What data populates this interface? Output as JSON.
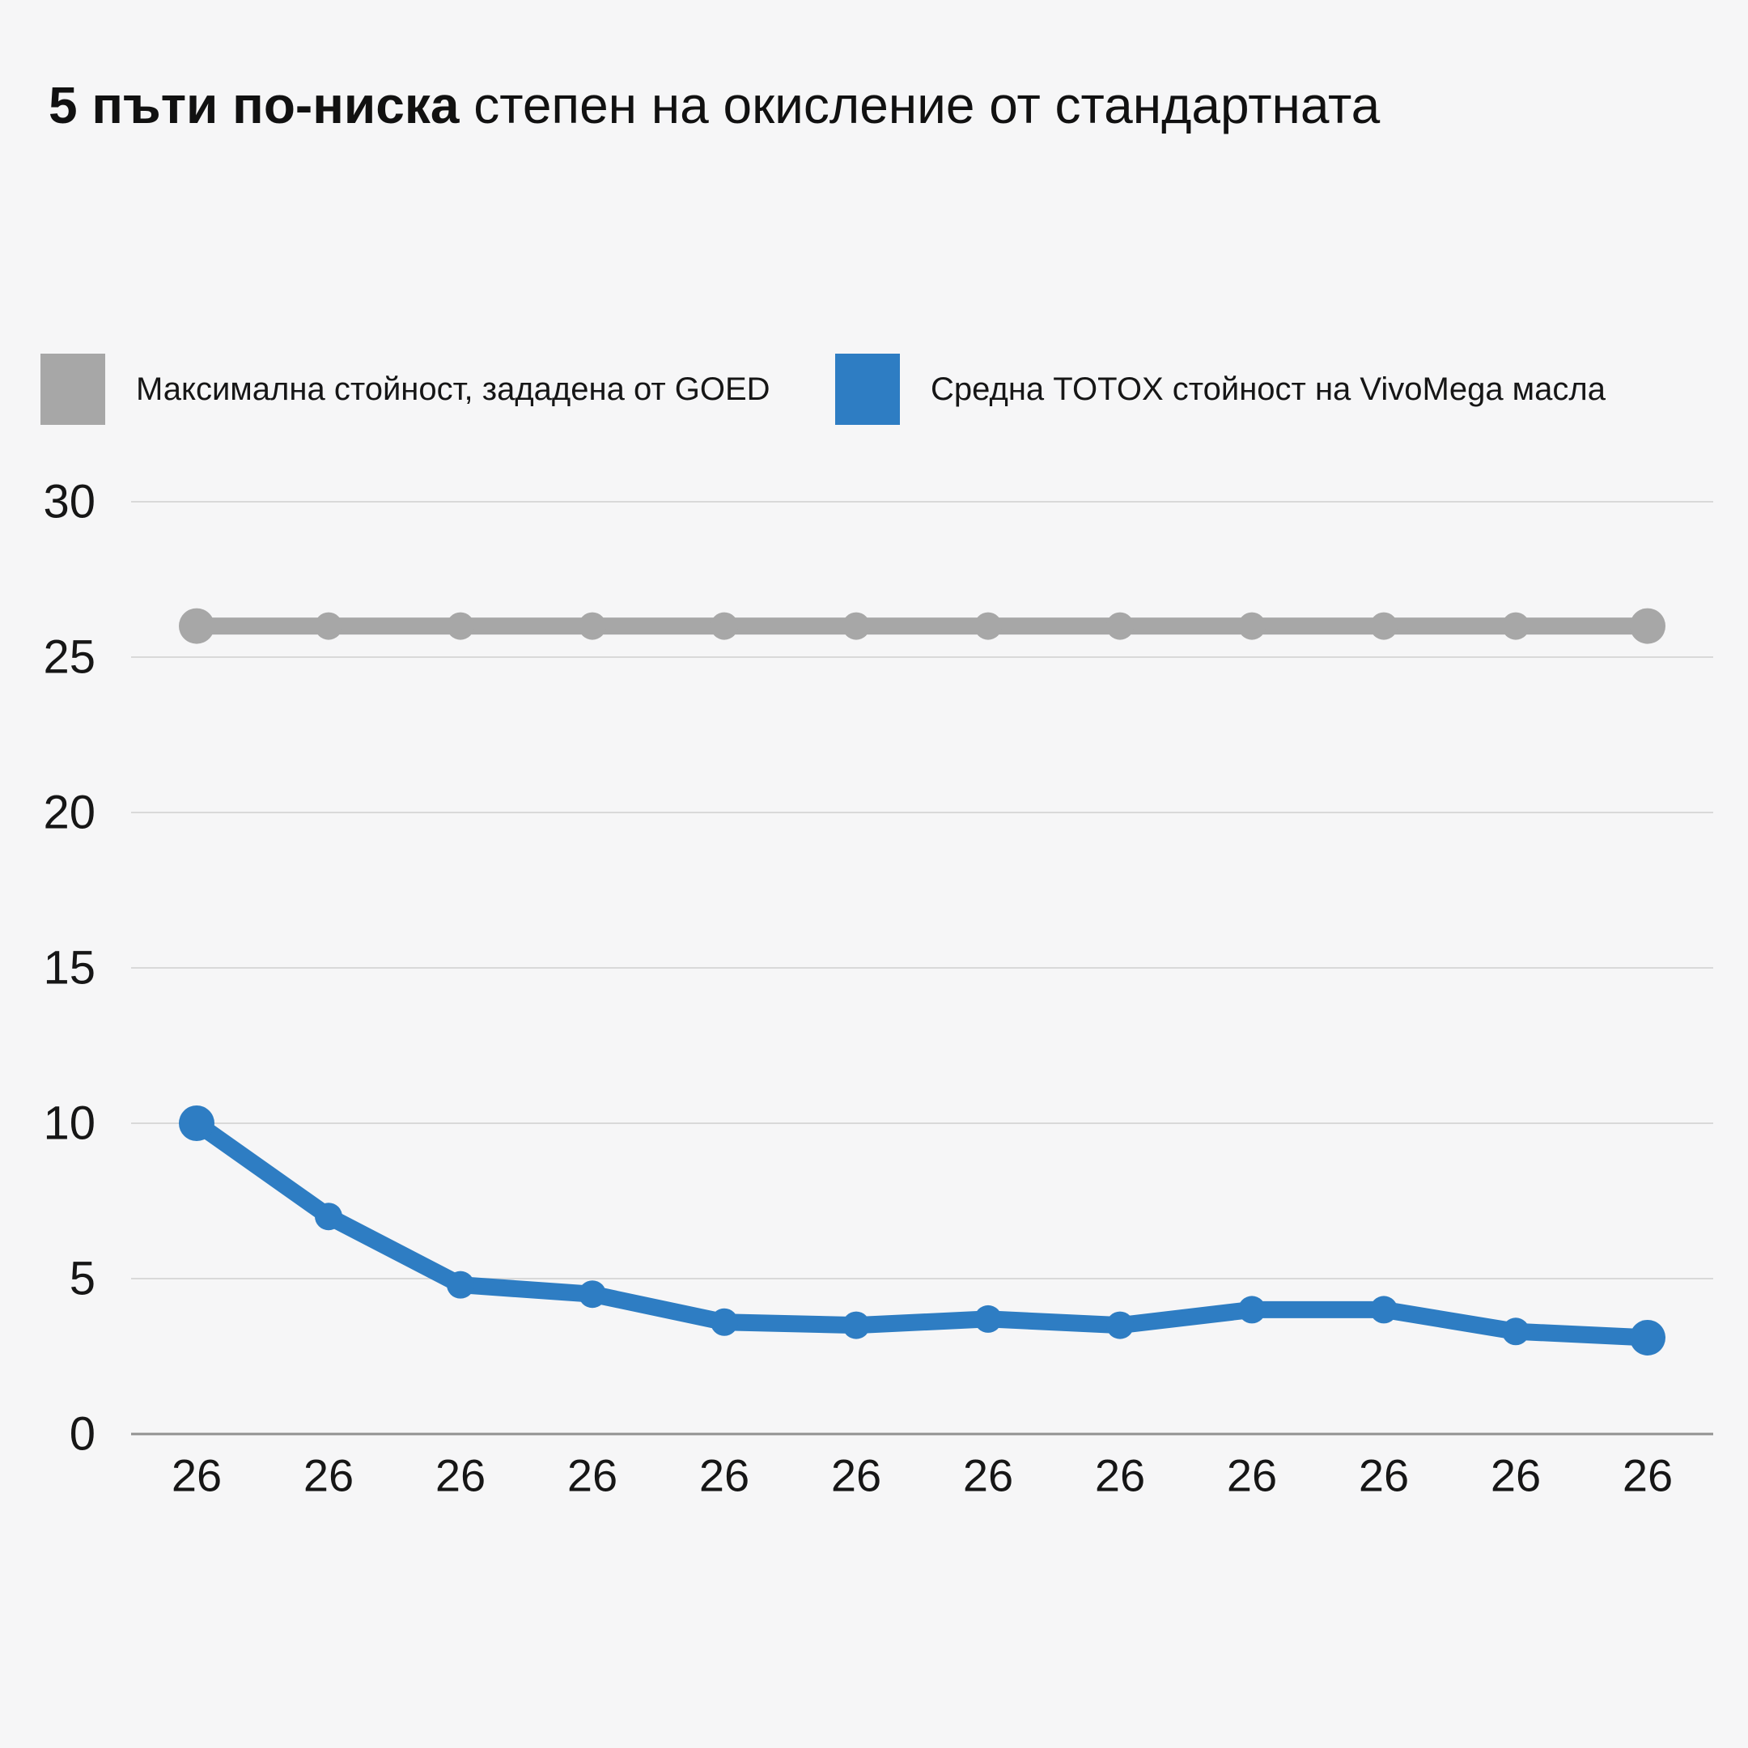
{
  "title": {
    "bold": "5 пъти по-ниска",
    "regular": " степен на окисление от стандартната"
  },
  "legend": {
    "items": [
      {
        "key": "goed-max",
        "label": "Максимална стойност, зададена от GOED",
        "color": "#a7a7a7"
      },
      {
        "key": "vivomega-avg",
        "label": "Средна TOTOX стойност на VivoMega масла",
        "color": "#2e7dc3"
      }
    ]
  },
  "colors": {
    "background": "#f6f6f7",
    "text": "#161616",
    "gridline": "#d9d9d9",
    "zero_line": "#919191",
    "goed_max_series": "#a7a7a7",
    "vivomega_series": "#2e7dc3"
  },
  "chart_data": {
    "type": "line",
    "title": "5 пъти по-ниска степен на окисление от стандартната",
    "categories": [
      "26",
      "26",
      "26",
      "26",
      "26",
      "26",
      "26",
      "26",
      "26",
      "26",
      "26",
      "26"
    ],
    "series": [
      {
        "key": "goed-max",
        "name": "Максимална стойност, зададена от GOED",
        "color": "#a7a7a7",
        "values": [
          26,
          26,
          26,
          26,
          26,
          26,
          26,
          26,
          26,
          26,
          26,
          26
        ]
      },
      {
        "key": "vivomega-avg",
        "name": "Средна TOTOX стойност на VivoMega масла",
        "color": "#2e7dc3",
        "values": [
          10,
          7,
          4.8,
          4.5,
          3.6,
          3.5,
          3.7,
          3.5,
          4,
          4,
          3.3,
          3.1
        ]
      }
    ],
    "xlabel": "",
    "ylabel": "",
    "yticks": [
      0,
      5,
      10,
      15,
      20,
      25,
      30
    ],
    "ylim": [
      0,
      30
    ],
    "grid": true,
    "legend_position": "top"
  }
}
